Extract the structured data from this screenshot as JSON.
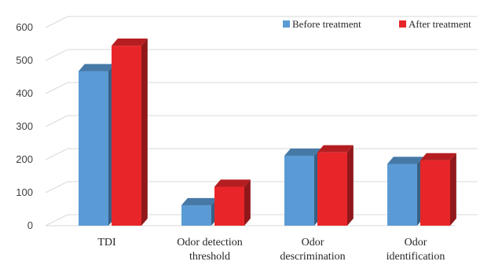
{
  "chart_data": {
    "type": "bar",
    "style": "3d-clustered-column",
    "categories": [
      [
        "TDI"
      ],
      [
        "Odor detection",
        "threshold"
      ],
      [
        "Odor",
        "descrimination"
      ],
      [
        "Odor",
        "identification"
      ]
    ],
    "series": [
      {
        "name": "Before treatment",
        "color": "#5b9bd5",
        "values": [
          468,
          62,
          212,
          187
        ]
      },
      {
        "name": "After treatment",
        "color": "#e8262a",
        "values": [
          545,
          118,
          222,
          198
        ]
      }
    ],
    "yticks": [
      0,
      100,
      200,
      300,
      400,
      500,
      600
    ],
    "ylim": [
      0,
      600
    ],
    "grid": true,
    "legend_position": "top-right",
    "title": "",
    "xlabel": "",
    "ylabel": ""
  }
}
